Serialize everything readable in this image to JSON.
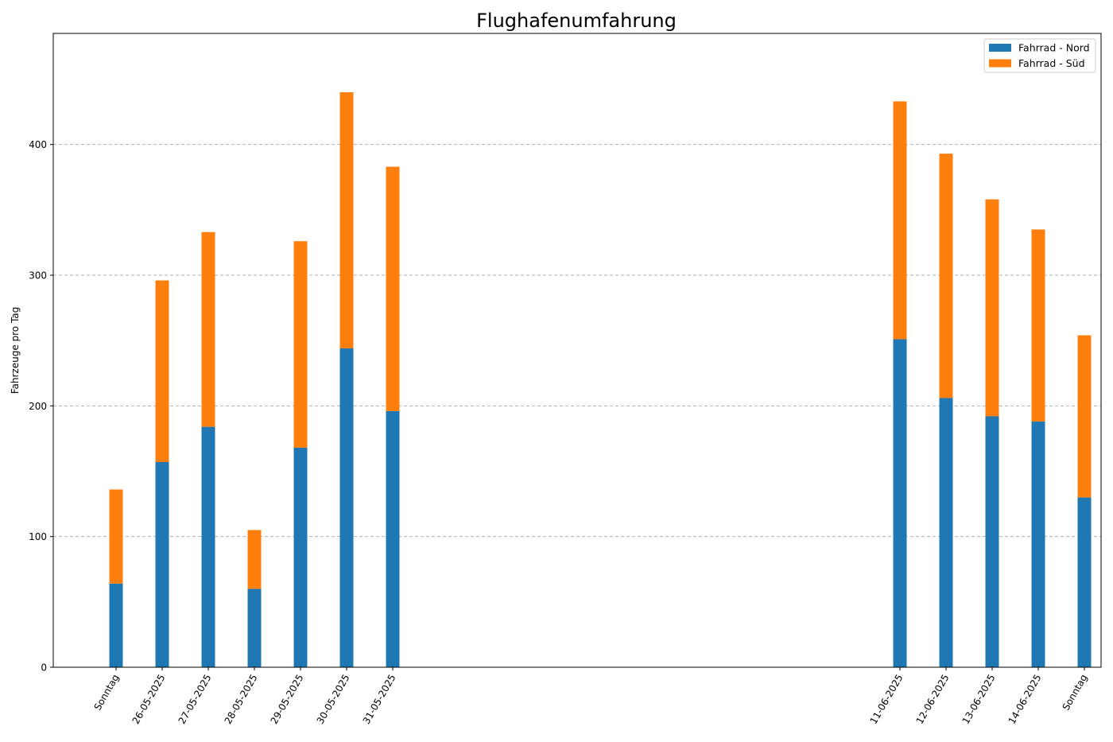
{
  "chart_data": {
    "type": "bar",
    "stacked": true,
    "title": "Flughafenumfahrung",
    "xlabel": "",
    "ylabel": "Fahrzeuge pro Tag",
    "ylim": [
      0,
      485
    ],
    "yticks": [
      0,
      100,
      200,
      300,
      400
    ],
    "xlim": [
      "2025-05-24",
      "2025-06-15"
    ],
    "grid": {
      "y": true,
      "style": "dashed"
    },
    "legend": {
      "placement": "top-right"
    },
    "x": [
      "2025-05-25",
      "2025-05-26",
      "2025-05-27",
      "2025-05-28",
      "2025-05-29",
      "2025-05-30",
      "2025-05-31",
      "2025-06-11",
      "2025-06-12",
      "2025-06-13",
      "2025-06-14",
      "2025-06-15"
    ],
    "categories": [
      "Sonntag",
      "26-05-2025",
      "27-05-2025",
      "28-05-2025",
      "29-05-2025",
      "30-05-2025",
      "31-05-2025",
      "11-06-2025",
      "12-06-2025",
      "13-06-2025",
      "14-06-2025",
      "Sonntag"
    ],
    "series": [
      {
        "name": "Fahrrad - Nord",
        "color": "#1f77b4",
        "values": [
          64,
          157,
          184,
          60,
          168,
          244,
          196,
          251,
          206,
          192,
          188,
          130
        ]
      },
      {
        "name": "Fahrrad - Süd",
        "color": "#ff7f0e",
        "values": [
          72,
          139,
          149,
          45,
          158,
          196,
          187,
          182,
          187,
          166,
          147,
          124
        ]
      }
    ]
  }
}
